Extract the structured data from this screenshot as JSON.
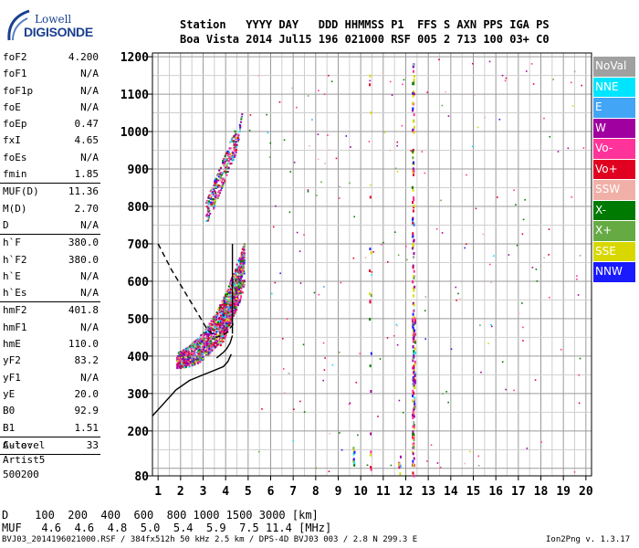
{
  "logo": {
    "line1": "Lowell",
    "line2": "DIGISONDE"
  },
  "header": {
    "labels_row": "Station   YYYY DAY   DDD HHMMSS P1  FFS S AXN PPS IGA PS",
    "values_row": "Boa Vista 2014 Jul15 196 021000 RSF 005 2 713 100 03+ C0"
  },
  "params": [
    {
      "name": "foF2",
      "value": "4.200"
    },
    {
      "name": "foF1",
      "value": "N/A"
    },
    {
      "name": "foF1p",
      "value": "N/A"
    },
    {
      "name": "foE",
      "value": "N/A"
    },
    {
      "name": "foEp",
      "value": "0.47"
    },
    {
      "name": "fxI",
      "value": "4.65"
    },
    {
      "name": "foEs",
      "value": "N/A"
    },
    {
      "name": "fmin",
      "value": "1.85"
    },
    {
      "sep": true
    },
    {
      "name": "MUF(D)",
      "value": "11.36"
    },
    {
      "name": "M(D)",
      "value": "2.70"
    },
    {
      "name": "D",
      "value": "N/A"
    },
    {
      "sep": true
    },
    {
      "name": "h`F",
      "value": "380.0"
    },
    {
      "name": "h`F2",
      "value": "380.0"
    },
    {
      "name": "h`E",
      "value": "N/A"
    },
    {
      "name": "h`Es",
      "value": "N/A"
    },
    {
      "sep": true
    },
    {
      "name": "hmF2",
      "value": "401.8"
    },
    {
      "name": "hmF1",
      "value": "N/A"
    },
    {
      "name": "hmE",
      "value": "110.0"
    },
    {
      "name": "yF2",
      "value": "83.2"
    },
    {
      "name": "yF1",
      "value": "N/A"
    },
    {
      "name": "yE",
      "value": "20.0"
    },
    {
      "name": "B0",
      "value": "92.9"
    },
    {
      "name": "B1",
      "value": "1.51"
    },
    {
      "sep": true
    },
    {
      "name": "C-level",
      "value": "33"
    },
    {
      "sep": true
    }
  ],
  "auto": {
    "line1": "Auto:",
    "line2": "Artist5",
    "line3": "500200"
  },
  "legend": [
    {
      "label": "NoVal",
      "color": "#a0a0a0"
    },
    {
      "label": "NNE",
      "color": "#00e5ff"
    },
    {
      "label": "E",
      "color": "#42a5f5"
    },
    {
      "label": "W",
      "color": "#a000a0"
    },
    {
      "label": "Vo-",
      "color": "#ff3399"
    },
    {
      "label": "Vo+",
      "color": "#e00020"
    },
    {
      "label": "SSW",
      "color": "#f0b0a8"
    },
    {
      "label": "X-",
      "color": "#007a00"
    },
    {
      "label": "X+",
      "color": "#66aa44"
    },
    {
      "label": "SSE",
      "color": "#d8d800"
    },
    {
      "label": "NNW",
      "color": "#1a1aff"
    }
  ],
  "mufline": {
    "d_row": "D    100  200  400  600  800 1000 1500 3000 [km]",
    "muf_row": "MUF   4.6  4.6  4.8  5.0  5.4  5.9  7.5 11.4 [MHz]"
  },
  "footer": {
    "left": "BVJ03_2014196021000.RSF / 384fx512h 50 kHz 2.5 km / DPS-4D BVJ03 003 / 2.8 N 299.3 E",
    "right": "Ion2Png v. 1.3.17"
  },
  "chart_data": {
    "type": "scatter",
    "x_ticks": [
      1,
      2,
      3,
      4,
      5,
      6,
      7,
      8,
      9,
      10,
      11,
      12,
      13,
      14,
      15,
      16,
      17,
      18,
      19,
      20
    ],
    "y_ticks": [
      80,
      200,
      300,
      400,
      500,
      600,
      700,
      800,
      900,
      1000,
      1100,
      1200
    ],
    "xlim": [
      0.75,
      20.25
    ],
    "ylim": [
      80,
      1210
    ],
    "grid": true,
    "legend_position": "right",
    "traces": {
      "solid_profile": [
        [
          0.75,
          240
        ],
        [
          1.2,
          270
        ],
        [
          1.8,
          310
        ],
        [
          2.4,
          335
        ],
        [
          3.0,
          350
        ],
        [
          3.5,
          362
        ],
        [
          3.9,
          372
        ],
        [
          4.1,
          385
        ],
        [
          4.25,
          405
        ]
      ],
      "solid_lower": [
        [
          3.6,
          395
        ],
        [
          3.9,
          410
        ],
        [
          4.05,
          420
        ],
        [
          4.2,
          435
        ],
        [
          4.3,
          455
        ]
      ],
      "solid_vertical": [
        [
          4.3,
          460
        ],
        [
          4.3,
          700
        ]
      ],
      "dashed_profile": [
        [
          1.0,
          700
        ],
        [
          1.6,
          630
        ],
        [
          2.2,
          570
        ],
        [
          2.8,
          510
        ],
        [
          3.2,
          470
        ],
        [
          3.6,
          450
        ],
        [
          4.0,
          460
        ],
        [
          4.4,
          490
        ]
      ]
    },
    "clusters": [
      {
        "x": [
          1.8,
          4.8
        ],
        "y": [
          370,
          560
        ],
        "n": 1400,
        "kind": "f2_lower"
      },
      {
        "x": [
          3.7,
          4.9
        ],
        "y": [
          450,
          700
        ],
        "n": 400,
        "kind": "f2_upper"
      },
      {
        "x": [
          3.1,
          4.5
        ],
        "y": [
          780,
          1010
        ],
        "n": 260,
        "kind": "second_hop"
      },
      {
        "x": [
          4.4,
          4.7
        ],
        "y": [
          940,
          1050
        ],
        "n": 25,
        "kind": "second_hop_tail"
      }
    ],
    "columns": [
      {
        "x": 12.3,
        "y": [
          80,
          1200
        ],
        "n": 160
      },
      {
        "x": 12.35,
        "y": [
          180,
          590
        ],
        "n": 60
      },
      {
        "x": 9.65,
        "y": [
          90,
          160
        ],
        "n": 10
      },
      {
        "x": 11.7,
        "y": [
          80,
          140
        ],
        "n": 8
      },
      {
        "x": 10.4,
        "y": [
          80,
          1200
        ],
        "n": 20
      }
    ],
    "noise": {
      "x": [
        5,
        20
      ],
      "y": [
        90,
        1200
      ],
      "n": 220
    }
  }
}
